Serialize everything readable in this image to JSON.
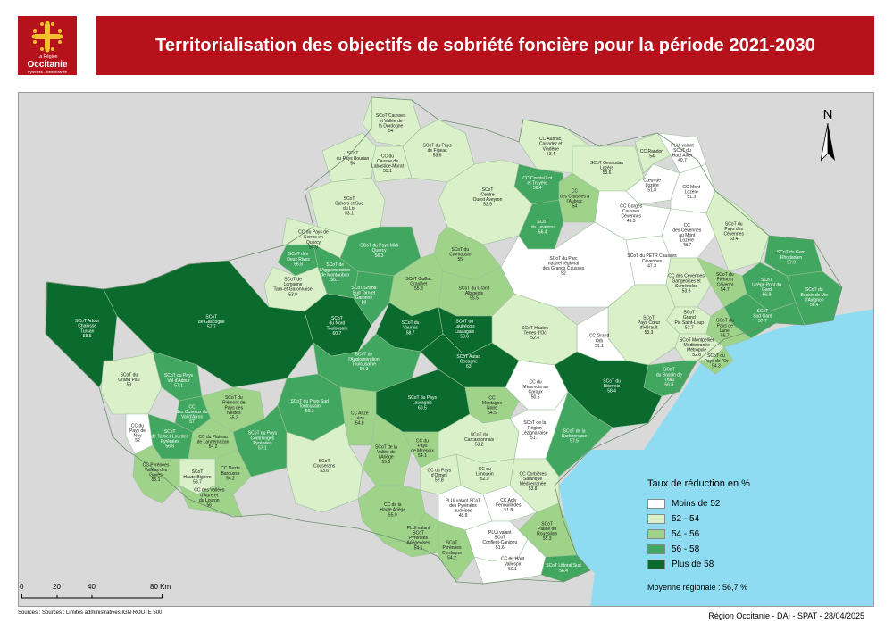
{
  "logo": {
    "region_prefix": "La Région",
    "name": "Occitanie",
    "subtitle": "Pyrénées - Méditerranée"
  },
  "title": "Territorialisation des objectifs de sobriété foncière pour la période 2021-2030",
  "north_label": "N",
  "legend": {
    "title": "Taux de réduction en %",
    "classes": [
      {
        "label": "Moins de 52",
        "color": "#ffffff"
      },
      {
        "label": "52 - 54",
        "color": "#d9f0c9"
      },
      {
        "label": "54 - 56",
        "color": "#9fd38a"
      },
      {
        "label": "56 - 58",
        "color": "#41a660"
      },
      {
        "label": "Plus de 58",
        "color": "#0b6b2e"
      }
    ],
    "average": "Moyenne régionale : 56,7 %"
  },
  "scale": {
    "ticks": [
      "0",
      "20",
      "40",
      "80 Km"
    ],
    "tick_values_km": [
      0,
      20,
      40,
      80
    ]
  },
  "sources": "Sources : Sources : Limites administratives IGN ROUTE 500",
  "credit": "Région Occitanie - DAI - SPAT - 28/04/2025",
  "colors": {
    "brand_red": "#b5121b",
    "sea": "#8fdcf2",
    "outside_land": "#d9d9d9",
    "border": "#9bbf9b"
  },
  "territories": [
    {
      "id": "causses-dordogne",
      "lines": [
        "SCoT Causses",
        "et Vallée de",
        "la Dordogne",
        "54"
      ],
      "value": 54,
      "cls": 1
    },
    {
      "id": "pays-bourian",
      "lines": [
        "SCoT",
        "du Pays Bourian",
        "54"
      ],
      "value": 54,
      "cls": 1
    },
    {
      "id": "causse-labastide",
      "lines": [
        "CC du",
        "Causse de",
        "Labastide-Murat",
        "53.1"
      ],
      "value": 53.1,
      "cls": 1
    },
    {
      "id": "pays-figeac",
      "lines": [
        "SCoT du Pays",
        "de Figeac",
        "53.6"
      ],
      "value": 53.6,
      "cls": 1
    },
    {
      "id": "cahors",
      "lines": [
        "SCoT",
        "Cahors et Sud",
        "du Lot",
        "53.1"
      ],
      "value": 53.1,
      "cls": 1
    },
    {
      "id": "serres-quercy",
      "lines": [
        "CC du Pays de",
        "Serres en",
        "Quercy",
        "53.9"
      ],
      "value": 53.9,
      "cls": 1
    },
    {
      "id": "aubrac",
      "lines": [
        "CC Aubrac,",
        "Carladez et",
        "Viadène",
        "53.4"
      ],
      "value": 53.4,
      "cls": 1
    },
    {
      "id": "comtal",
      "lines": [
        "CC Comtal Lot",
        "et Truyère",
        "56.4"
      ],
      "value": 56.4,
      "cls": 3
    },
    {
      "id": "causses-aubrac",
      "lines": [
        "CC",
        "des Causses à",
        "l'Aubrac",
        "54"
      ],
      "value": 54,
      "cls": 2
    },
    {
      "id": "gevaudan",
      "lines": [
        "SCoT Gevaudan",
        "Lozère",
        "53.6"
      ],
      "value": 53.6,
      "cls": 1
    },
    {
      "id": "randon",
      "lines": [
        "CC Randon",
        "54"
      ],
      "value": 54,
      "cls": 1
    },
    {
      "id": "haut-allier",
      "lines": [
        "PLUi valant",
        "SCoT du",
        "Haut Allier",
        "49.7"
      ],
      "value": 49.7,
      "cls": 0
    },
    {
      "id": "coeur-lozere",
      "lines": [
        "Cœur de",
        "Lozère",
        "51.8"
      ],
      "value": 51.8,
      "cls": 0
    },
    {
      "id": "mont-lozere",
      "lines": [
        "CC Mont",
        "Lozère",
        "51.3"
      ],
      "value": 51.3,
      "cls": 0
    },
    {
      "id": "ouest-aveyron",
      "lines": [
        "SCoT",
        "Centre",
        "Ouest Aveyron",
        "53.9"
      ],
      "value": 53.9,
      "cls": 1
    },
    {
      "id": "levezou",
      "lines": [
        "SCoT",
        "du Levezou",
        "56.4"
      ],
      "value": 56.4,
      "cls": 3
    },
    {
      "id": "gorges-causses",
      "lines": [
        "CC Gorges",
        "Causses",
        "Cévennes",
        "49.3"
      ],
      "value": 49.3,
      "cls": 0
    },
    {
      "id": "cevennes-mont-lozere",
      "lines": [
        "CC",
        "des Cévennes",
        "au Mont",
        "Lozère",
        "48.7"
      ],
      "value": 48.7,
      "cls": 0
    },
    {
      "id": "pays-cevennes",
      "lines": [
        "SCoT du",
        "Pays des",
        "Cévennes",
        "53.4"
      ],
      "value": 53.4,
      "cls": 1
    },
    {
      "id": "rhodanien",
      "lines": [
        "SCoT du Gard",
        "Rhodanien",
        "57.9"
      ],
      "value": 57.9,
      "cls": 3
    },
    {
      "id": "uzege",
      "lines": [
        "SCoT",
        "Uzège Pont du",
        "Gard",
        "56.9"
      ],
      "value": 56.9,
      "cls": 3
    },
    {
      "id": "avignon",
      "lines": [
        "SCoT du",
        "Bassin de Vie",
        "d'Avignon",
        "56.4"
      ],
      "value": 56.4,
      "cls": 3
    },
    {
      "id": "deux-rives",
      "lines": [
        "SCoT des",
        "Deux Rives",
        "56.8"
      ],
      "value": 56.8,
      "cls": 3
    },
    {
      "id": "lomagne",
      "lines": [
        "SCoT de",
        "Lomagne",
        "Tarn-et-Garonnaise",
        "53.9"
      ],
      "value": 53.9,
      "cls": 1
    },
    {
      "id": "montauban",
      "lines": [
        "SCoT de",
        "l'Agglomération",
        "de Montauban",
        "56.1"
      ],
      "value": 56.1,
      "cls": 3
    },
    {
      "id": "midi-quercy",
      "lines": [
        "SCoT du Pays Midi",
        "Quercy",
        "56.3"
      ],
      "value": 56.3,
      "cls": 3
    },
    {
      "id": "carmausin",
      "lines": [
        "SCoT du",
        "Carmausin",
        "55"
      ],
      "value": 55,
      "cls": 2
    },
    {
      "id": "gaillac",
      "lines": [
        "SCoT Gaillac",
        "Graulhet",
        "55.3"
      ],
      "value": 55.3,
      "cls": 2
    },
    {
      "id": "grand-albigeois",
      "lines": [
        "SCoT du Grand",
        "Albigeois",
        "55.5"
      ],
      "value": 55.5,
      "cls": 2
    },
    {
      "id": "parc-grands-causses",
      "lines": [
        "SCoT du Parc",
        "naturel régional",
        "des Grands Causses",
        "52"
      ],
      "value": 52,
      "cls": 0
    },
    {
      "id": "petr-causses",
      "lines": [
        "SCoT du PETR Causses",
        "Cévennes",
        "47.3"
      ],
      "value": 47.3,
      "cls": 0
    },
    {
      "id": "cevennes-gangeoises",
      "lines": [
        "CC des Cévennes",
        "Gangeoises et",
        "Suménoles",
        "53.3"
      ],
      "value": 53.3,
      "cls": 1
    },
    {
      "id": "piemont-cevenol",
      "lines": [
        "SCoT du",
        "Piémont",
        "Cévenol",
        "54.7"
      ],
      "value": 54.7,
      "cls": 2
    },
    {
      "id": "grand-pic",
      "lines": [
        "SCoT",
        "Grand",
        "Pic Saint-Loup",
        "53.7"
      ],
      "value": 53.7,
      "cls": 1
    },
    {
      "id": "sud-gard",
      "lines": [
        "SCoT",
        "Sud Gard",
        "57.7"
      ],
      "value": 57.7,
      "cls": 3
    },
    {
      "id": "pays-lunel",
      "lines": [
        "SCoT du",
        "Pays de",
        "Lunel",
        "55.7"
      ],
      "value": 55.7,
      "cls": 2
    },
    {
      "id": "montpellier",
      "lines": [
        "SCoT Montpellier",
        "Méditerranée",
        "Métropole",
        "52.8"
      ],
      "value": 52.8,
      "cls": 1
    },
    {
      "id": "bassin-thau",
      "lines": [
        "SCoT",
        "du Bassin de",
        "Thau",
        "56.8"
      ],
      "value": 56.8,
      "cls": 3
    },
    {
      "id": "pays-or",
      "lines": [
        "SCoT du",
        "Pays de l'Or",
        "54.3"
      ],
      "value": 54.3,
      "cls": 2
    },
    {
      "id": "coeur-herault",
      "lines": [
        "SCoT",
        "Pays Cœur",
        "d'Hérault",
        "53.3"
      ],
      "value": 53.3,
      "cls": 1
    },
    {
      "id": "grand-orb",
      "lines": [
        "CC Grand",
        "Orb",
        "51.1"
      ],
      "value": 51.1,
      "cls": 0
    },
    {
      "id": "hautes-terres",
      "lines": [
        "SCoT Hautes",
        "Terres d'Oc",
        "52.4"
      ],
      "value": 52.4,
      "cls": 1
    },
    {
      "id": "biterrois",
      "lines": [
        "SCoT du",
        "Biterrois",
        "58.4"
      ],
      "value": 58.4,
      "cls": 4
    },
    {
      "id": "adour-chalosse",
      "lines": [
        "SCoT Adour",
        "Chalosse",
        "Tursan",
        "58.5"
      ],
      "value": 58.5,
      "cls": 4
    },
    {
      "id": "gascogne",
      "lines": [
        "SCoT",
        "de Gascogne",
        "57.7"
      ],
      "value": 57.7,
      "cls": 4
    },
    {
      "id": "nord-toulousain",
      "lines": [
        "SCoT",
        "du Nord",
        "Toulousain",
        "60.7"
      ],
      "value": 60.7,
      "cls": 4
    },
    {
      "id": "grand-sud-tarn",
      "lines": [
        "SCoT Grand",
        "Sud Tarn et",
        "Garonne",
        "58"
      ],
      "value": 58,
      "cls": 3
    },
    {
      "id": "vaurais",
      "lines": [
        "SCoT du",
        "Vaurais",
        "58.7"
      ],
      "value": 58.7,
      "cls": 4
    },
    {
      "id": "lautrecois",
      "lines": [
        "SCoT du",
        "Lautrécois",
        "Lauragais",
        "59.6"
      ],
      "value": 59.6,
      "cls": 4
    },
    {
      "id": "autan-cocagne",
      "lines": [
        "SCoT Autan",
        "Cocagne",
        "63"
      ],
      "value": 63,
      "cls": 4
    },
    {
      "id": "grande-agglo-toulousaine",
      "lines": [
        "SCoT de",
        "l'Agglomération",
        "Toulousaine",
        "60.3"
      ],
      "value": 60.3,
      "cls": 3
    },
    {
      "id": "grand-pau",
      "lines": [
        "SCoT du",
        "Grand Pau",
        "53"
      ],
      "value": 53,
      "cls": 1
    },
    {
      "id": "val-adour",
      "lines": [
        "SCoT du Pays",
        "Val d'Adour",
        "57.1"
      ],
      "value": 57.1,
      "cls": 3
    },
    {
      "id": "coteaux-val-arros",
      "lines": [
        "CC",
        "des Coteaux du",
        "Val d'Arros",
        "57"
      ],
      "value": 57,
      "cls": 3
    },
    {
      "id": "plaine-ariege-toulouse",
      "lines": [
        "SCoT du",
        "Piémont de",
        "Pays des",
        "Nestes",
        "55.3"
      ],
      "value": 55.3,
      "cls": 2
    },
    {
      "id": "sud-toulousain",
      "lines": [
        "SCoT du Pays Sud",
        "Toulousain",
        "59.3"
      ],
      "value": 59.3,
      "cls": 3
    },
    {
      "id": "lauragais",
      "lines": [
        "SCoT du Pays",
        "Lauragais",
        "60.5"
      ],
      "value": 60.5,
      "cls": 4
    },
    {
      "id": "montagne-noire",
      "lines": [
        "CC",
        "Montagne",
        "Noire",
        "54.5"
      ],
      "value": 54.5,
      "cls": 2
    },
    {
      "id": "minervois-caroux",
      "lines": [
        "CC du",
        "Minervois au",
        "Caroux",
        "50.5"
      ],
      "value": 50.5,
      "cls": 0
    },
    {
      "id": "pays-nay",
      "lines": [
        "CC du",
        "Pays de",
        "Nay",
        "52"
      ],
      "value": 52,
      "cls": 0
    },
    {
      "id": "tarbes-lourdes",
      "lines": [
        "SCoT",
        "de Tarbes Lourdes",
        "Pyrénées",
        "56.6"
      ],
      "value": 56.6,
      "cls": 3
    },
    {
      "id": "plateau-lannemezan",
      "lines": [
        "CC du Plateau",
        "de Lannemezan",
        "54.2"
      ],
      "value": 54.2,
      "cls": 2
    },
    {
      "id": "comminges",
      "lines": [
        "SCoT du Pays",
        "Comminges",
        "Pyrénées",
        "57.1"
      ],
      "value": 57.1,
      "cls": 3
    },
    {
      "id": "neste-barousse",
      "lines": [
        "CC Neste",
        "Barousse",
        "54.2"
      ],
      "value": 54.2,
      "cls": 2
    },
    {
      "id": "haute-bigorre",
      "lines": [
        "SCoT",
        "Haute-Bigorre",
        "53.7"
      ],
      "value": 53.7,
      "cls": 1
    },
    {
      "id": "vallees-gaves",
      "lines": [
        "CC Pyrénées",
        "Vallées des",
        "Gaves",
        "55.1"
      ],
      "value": 55.1,
      "cls": 2
    },
    {
      "id": "vallees-aure-louron",
      "lines": [
        "CC des Vallées",
        "d'Aure et",
        "du Louron",
        "56"
      ],
      "value": 56,
      "cls": 2
    },
    {
      "id": "arize-leze",
      "lines": [
        "CC Arize",
        "Lèze",
        "54.8"
      ],
      "value": 54.8,
      "cls": 2
    },
    {
      "id": "vallee-ariege",
      "lines": [
        "SCoT de la",
        "Vallée de",
        "l'Ariège",
        "55.5"
      ],
      "value": 55.5,
      "cls": 2
    },
    {
      "id": "couserans",
      "lines": [
        "SCoT",
        "Couserans",
        "53.6"
      ],
      "value": 53.6,
      "cls": 1
    },
    {
      "id": "mirepoix",
      "lines": [
        "CC du",
        "Pays",
        "de Mirepoix",
        "54.1"
      ],
      "value": 54.1,
      "cls": 2
    },
    {
      "id": "carcassonnais",
      "lines": [
        "SCoT du",
        "Carcassonnais",
        "53.2"
      ],
      "value": 53.2,
      "cls": 1
    },
    {
      "id": "narbonnaise",
      "lines": [
        "SCoT de la",
        "Narbonnaise",
        "57.5"
      ],
      "value": 57.5,
      "cls": 3
    },
    {
      "id": "region-lezignanaise",
      "lines": [
        "SCoT de la",
        "Région",
        "Lézignanaise",
        "51.7"
      ],
      "value": 51.7,
      "cls": 0
    },
    {
      "id": "limouxin",
      "lines": [
        "CC du",
        "Limouxin",
        "52.9"
      ],
      "value": 52.9,
      "cls": 1
    },
    {
      "id": "pays-olmes",
      "lines": [
        "CC du Pays",
        "d'Olmes",
        "52.8"
      ],
      "value": 52.8,
      "cls": 1
    },
    {
      "id": "haute-ariege",
      "lines": [
        "CC de la",
        "Haute Ariège",
        "55.9"
      ],
      "value": 55.9,
      "cls": 2
    },
    {
      "id": "pyrenees-audoises",
      "lines": [
        "PLUi valant SCoT",
        "des Pyrénées",
        "audoises",
        "48.9"
      ],
      "value": 48.9,
      "cls": 0
    },
    {
      "id": "corbieres",
      "lines": [
        "CC Corbières",
        "Salanque",
        "Méditerranée",
        "53.8"
      ],
      "value": 53.8,
      "cls": 1
    },
    {
      "id": "agly-fenouilledes",
      "lines": [
        "CC Agly",
        "Fenouillèdes",
        "51.8"
      ],
      "value": 51.8,
      "cls": 0
    },
    {
      "id": "plaine-roussillon",
      "lines": [
        "SCoT",
        "Plaine du",
        "Roussillon",
        "55.3"
      ],
      "value": 55.3,
      "cls": 2
    },
    {
      "id": "pyreneees-ariegeoises",
      "lines": [
        "PLUi valant",
        "SCoT",
        "Pyrénées",
        "Ariégeoises",
        "54.1"
      ],
      "value": 54.1,
      "cls": 2
    },
    {
      "id": "cerdagne",
      "lines": [
        "SCoT",
        "Pyrénées",
        "Cerdagne",
        "54.2"
      ],
      "value": 54.2,
      "cls": 2
    },
    {
      "id": "conflent-canigou",
      "lines": [
        "PLUi valant",
        "SCoT",
        "Conflent-Canigou",
        "51.6"
      ],
      "value": 51.6,
      "cls": 0
    },
    {
      "id": "littoral-sud",
      "lines": [
        "SCoT Littoral Sud",
        "56.4"
      ],
      "value": 56.4,
      "cls": 3
    },
    {
      "id": "haut-vallespir",
      "lines": [
        "CC du Haut",
        "Vallespir",
        "50.1"
      ],
      "value": 50.1,
      "cls": 0
    }
  ]
}
